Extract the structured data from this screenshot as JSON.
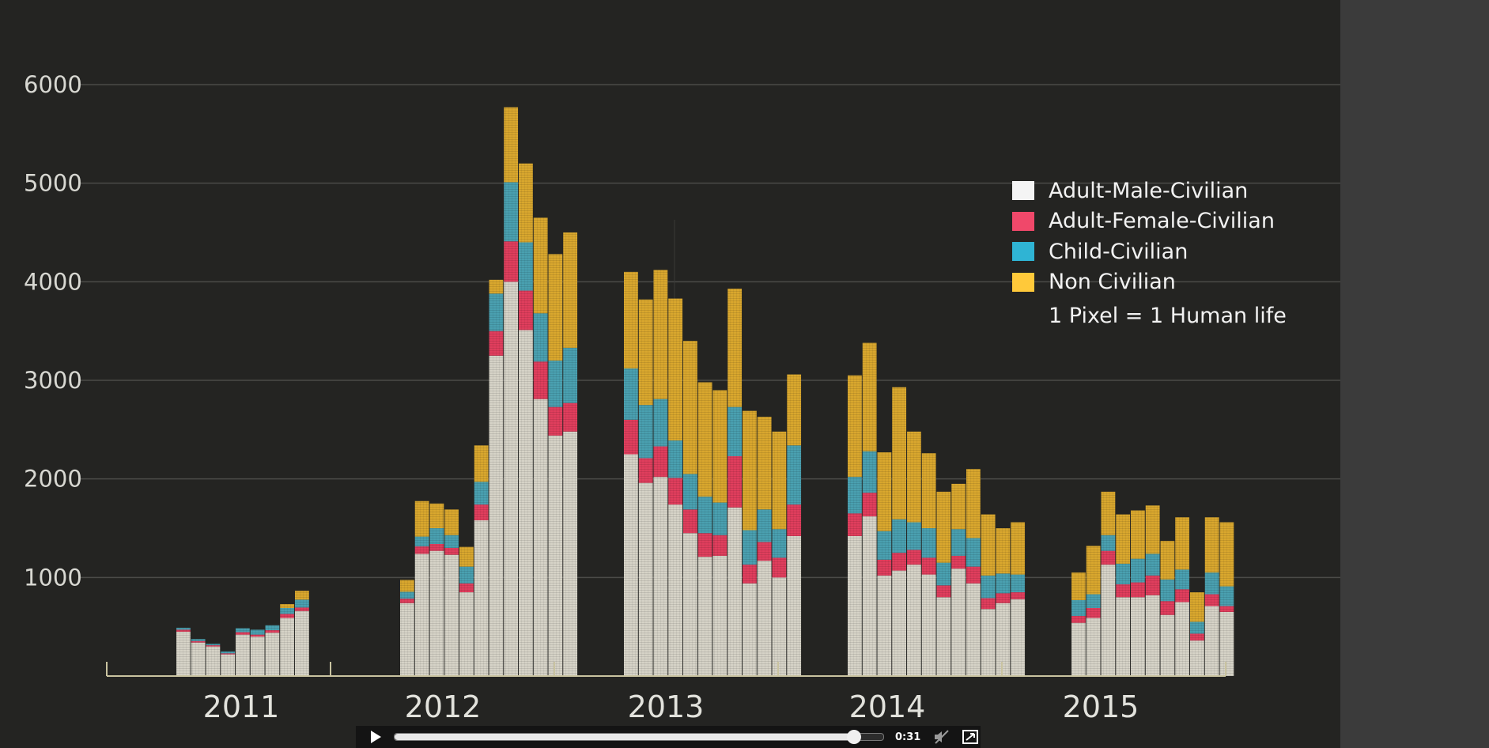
{
  "chart_data": {
    "type": "bar",
    "stacked": true,
    "title": "",
    "xlabel": "",
    "ylabel": "",
    "ylim": [
      0,
      6000
    ],
    "yticks": [
      1000,
      2000,
      3000,
      4000,
      5000,
      6000
    ],
    "ytick_labels": [
      "1000",
      "2000",
      "3000",
      "4000",
      "5000",
      "6000"
    ],
    "grid": true,
    "legend_position": "top-right",
    "groups": [
      {
        "label": "2011",
        "months": 9
      },
      {
        "label": "2012",
        "months": 12
      },
      {
        "label": "2013",
        "months": 12
      },
      {
        "label": "2014",
        "months": 12
      },
      {
        "label": "2015",
        "months": 11
      }
    ],
    "series": [
      {
        "name": "Adult-Male-Civilian",
        "color": "#d6d3c7",
        "values": [
          450,
          340,
          300,
          220,
          420,
          400,
          440,
          590,
          660,
          740,
          1240,
          1270,
          1230,
          850,
          1580,
          3250,
          4000,
          3510,
          2810,
          2440,
          2480,
          2250,
          1960,
          2020,
          1740,
          1450,
          1210,
          1220,
          1710,
          940,
          1170,
          1000,
          1420,
          1420,
          1620,
          1020,
          1070,
          1130,
          1030,
          800,
          1090,
          940,
          680,
          740,
          780,
          540,
          590,
          1130,
          800,
          800,
          820,
          620,
          750,
          360,
          710,
          650
        ]
      },
      {
        "name": "Adult-Female-Civilian",
        "color": "#e03e5d",
        "values": [
          20,
          15,
          12,
          10,
          25,
          20,
          25,
          40,
          35,
          45,
          75,
          70,
          70,
          90,
          160,
          250,
          410,
          400,
          380,
          290,
          290,
          350,
          250,
          310,
          270,
          240,
          240,
          210,
          520,
          190,
          190,
          200,
          320,
          230,
          240,
          160,
          180,
          150,
          170,
          120,
          130,
          170,
          110,
          100,
          70,
          70,
          100,
          140,
          130,
          150,
          200,
          140,
          130,
          70,
          120,
          60
        ]
      },
      {
        "name": "Child-Civilian",
        "color": "#4aa0b0",
        "values": [
          20,
          20,
          15,
          20,
          40,
          50,
          50,
          60,
          80,
          70,
          100,
          160,
          130,
          170,
          230,
          380,
          600,
          490,
          490,
          470,
          560,
          520,
          540,
          480,
          380,
          360,
          370,
          330,
          500,
          350,
          330,
          290,
          600,
          370,
          420,
          290,
          340,
          280,
          300,
          230,
          270,
          290,
          230,
          200,
          180,
          160,
          140,
          160,
          210,
          240,
          220,
          220,
          200,
          120,
          220,
          200
        ]
      },
      {
        "name": "Non Civilian",
        "color": "#d9a72e",
        "values": [
          0,
          0,
          0,
          0,
          0,
          0,
          0,
          40,
          90,
          120,
          360,
          250,
          260,
          200,
          370,
          140,
          760,
          800,
          970,
          1080,
          1170,
          980,
          1070,
          1310,
          1440,
          1350,
          1160,
          1140,
          1200,
          1210,
          940,
          990,
          720,
          1030,
          1100,
          800,
          1340,
          920,
          760,
          720,
          460,
          700,
          620,
          460,
          530,
          280,
          490,
          440,
          500,
          490,
          490,
          390,
          530,
          300,
          560,
          650
        ]
      }
    ]
  },
  "legend": {
    "items": [
      {
        "label": "Adult-Male-Civilian",
        "color": "#f4f4f4"
      },
      {
        "label": "Adult-Female-Civilian",
        "color": "#f0486a"
      },
      {
        "label": "Child-Civilian",
        "color": "#2fb4d4"
      },
      {
        "label": "Non Civilian",
        "color": "#ffc93a"
      }
    ],
    "note": "1 Pixel = 1 Human life"
  },
  "player": {
    "time": "0:31",
    "progress_fraction": 0.94
  }
}
